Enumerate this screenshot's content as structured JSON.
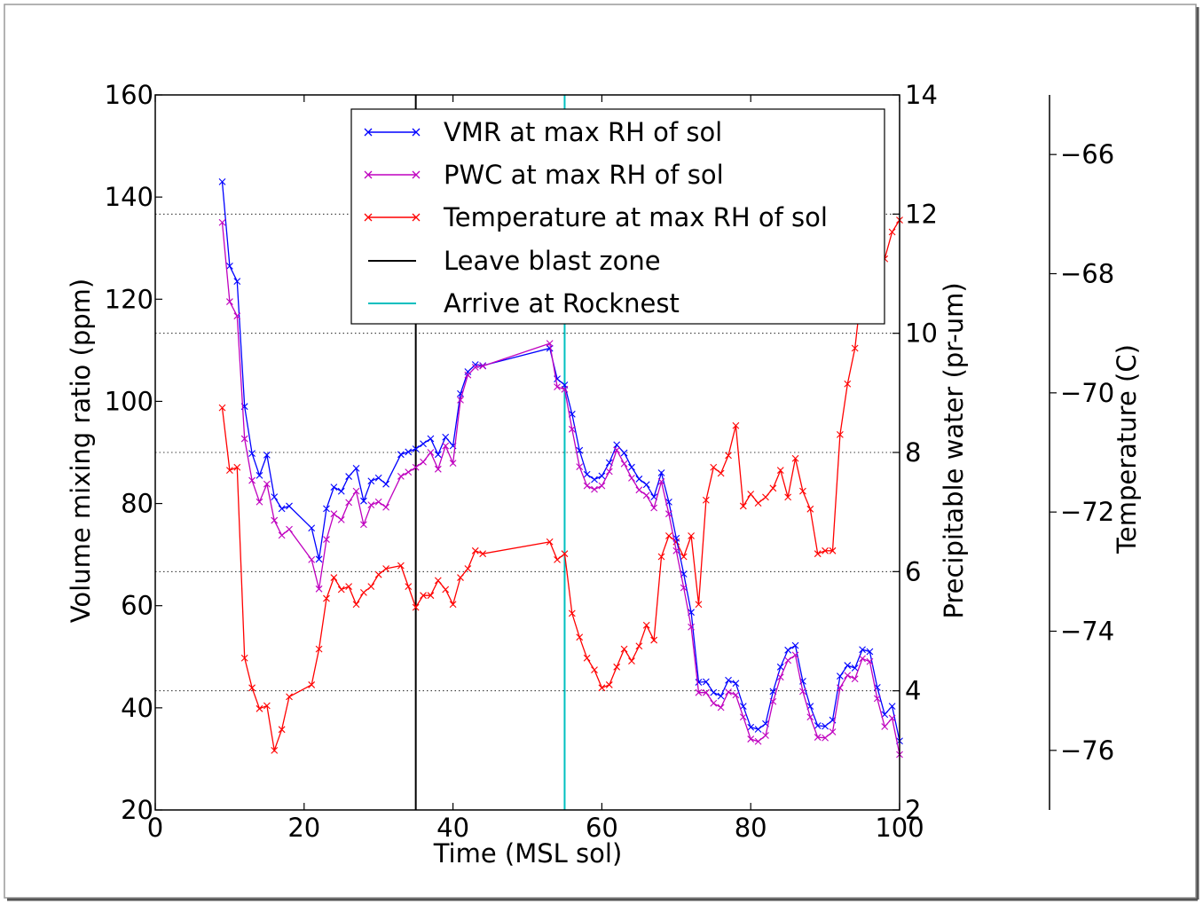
{
  "chart_data": {
    "type": "line",
    "title": "",
    "xlabel": "Time (MSL sol)",
    "ylabel_left": "Volume mixing ratio (ppm)",
    "ylabel_right": "Precipitable water (pr-um)",
    "ylabel_temperature": "Temperature (C)",
    "xlim": [
      0,
      100
    ],
    "ylim_left": [
      20,
      160
    ],
    "ylim_right": [
      2,
      14
    ],
    "ylim_temperature": [
      -77,
      -65
    ],
    "x_ticks": [
      0,
      20,
      40,
      60,
      80,
      100
    ],
    "y_left_ticks": [
      20,
      40,
      60,
      80,
      100,
      120,
      140,
      160
    ],
    "y_right_ticks": [
      2,
      4,
      6,
      8,
      10,
      12,
      14
    ],
    "y_temperature_ticks": [
      -76,
      -74,
      -72,
      -70,
      -68,
      -66
    ],
    "x_tick_labels": [
      "0",
      "20",
      "40",
      "60",
      "80",
      "100"
    ],
    "y_left_tick_labels": [
      "20",
      "40",
      "60",
      "80",
      "100",
      "120",
      "140",
      "160"
    ],
    "y_right_tick_labels": [
      "2",
      "4",
      "6",
      "8",
      "10",
      "12",
      "14"
    ],
    "y_temperature_tick_labels": [
      "−76",
      "−74",
      "−72",
      "−70",
      "−68",
      "−66"
    ],
    "grid": "horizontal dotted at right-axis ticks",
    "legend_position": "top-center",
    "vertical_lines": [
      {
        "name": "Leave blast zone",
        "x": 35,
        "color": "#000000"
      },
      {
        "name": "Arrive at Rocknest",
        "x": 55,
        "color": "#00bfbf"
      }
    ],
    "series": [
      {
        "name": "VMR at max RH of sol",
        "color": "#0000ff",
        "axis": "left",
        "x": [
          9,
          10,
          11,
          12,
          13,
          14,
          15,
          16,
          17,
          18,
          21,
          22,
          23,
          24,
          25,
          26,
          27,
          28,
          29,
          30,
          31,
          33,
          34,
          35,
          36,
          37,
          38,
          39,
          40,
          41,
          42,
          43,
          44,
          53,
          54,
          55,
          56,
          57,
          58,
          59,
          60,
          61,
          62,
          63,
          64,
          65,
          66,
          67,
          68,
          69,
          70,
          71,
          72,
          73,
          74,
          75,
          76,
          77,
          78,
          79,
          80,
          81,
          82,
          83,
          84,
          85,
          86,
          87,
          88,
          89,
          90,
          91,
          92,
          93,
          94,
          95,
          96,
          97,
          98,
          99,
          100
        ],
        "values": [
          143,
          126.5,
          123.5,
          99,
          89.8,
          85.5,
          89.5,
          81.3,
          79,
          79.5,
          75.2,
          69.1,
          79,
          83.2,
          82.4,
          85.3,
          86.9,
          80.5,
          84.4,
          85,
          83.8,
          89.6,
          90.1,
          90.7,
          91.7,
          92.7,
          89.6,
          93,
          91.3,
          101.5,
          105.8,
          107.2,
          107,
          110.4,
          104.4,
          103.2,
          97.5,
          90.4,
          85.7,
          84.7,
          85.4,
          88,
          91.5,
          89.9,
          87.1,
          84.8,
          83.7,
          81.3,
          86,
          80.3,
          73.2,
          66.2,
          58.7,
          45,
          45.1,
          43,
          42.3,
          45.4,
          44.8,
          40.3,
          36.2,
          35.8,
          36.9,
          43.2,
          48,
          51.3,
          52.2,
          45.2,
          40.3,
          36.5,
          36.4,
          37.6,
          46.2,
          48.3,
          47.8,
          51.4,
          51,
          44,
          38.7,
          40.3,
          33.5
        ]
      },
      {
        "name": "PWC at max RH of sol",
        "color": "#bf00bf",
        "axis": "right",
        "x": [
          9,
          10,
          11,
          12,
          13,
          14,
          15,
          16,
          17,
          18,
          21,
          22,
          23,
          24,
          25,
          26,
          27,
          28,
          29,
          30,
          31,
          33,
          34,
          35,
          36,
          37,
          38,
          39,
          40,
          41,
          42,
          43,
          44,
          53,
          54,
          55,
          56,
          57,
          58,
          59,
          60,
          61,
          62,
          63,
          64,
          65,
          66,
          67,
          68,
          69,
          70,
          71,
          72,
          73,
          74,
          75,
          76,
          77,
          78,
          79,
          80,
          81,
          82,
          83,
          84,
          85,
          86,
          87,
          88,
          89,
          90,
          91,
          92,
          93,
          94,
          95,
          96,
          97,
          98,
          99,
          100
        ],
        "values": [
          11.86,
          10.53,
          10.29,
          8.23,
          7.53,
          7.17,
          7.47,
          6.86,
          6.61,
          6.71,
          6.2,
          5.71,
          6.54,
          6.97,
          6.87,
          7.16,
          7.35,
          6.79,
          7.12,
          7.17,
          7.08,
          7.6,
          7.67,
          7.75,
          7.84,
          8,
          7.72,
          8.11,
          7.82,
          8.88,
          9.3,
          9.43,
          9.45,
          9.83,
          9.1,
          9.06,
          8.39,
          7.76,
          7.44,
          7.38,
          7.44,
          7.68,
          8.04,
          7.81,
          7.57,
          7.37,
          7.28,
          7.07,
          7.51,
          6.97,
          6.35,
          5.73,
          5.07,
          3.97,
          3.97,
          3.79,
          3.72,
          3.98,
          3.93,
          3.56,
          3.19,
          3.15,
          3.25,
          3.82,
          4.23,
          4.51,
          4.6,
          3.99,
          3.56,
          3.22,
          3.21,
          3.31,
          4.05,
          4.26,
          4.2,
          4.54,
          4.49,
          3.87,
          3.4,
          3.54,
          2.93
        ]
      },
      {
        "name": "Temperature at max RH of sol",
        "color": "#ff0000",
        "axis": "temperature",
        "x": [
          9,
          10,
          11,
          12,
          13,
          14,
          15,
          16,
          17,
          18,
          21,
          22,
          23,
          24,
          25,
          26,
          27,
          28,
          29,
          30,
          31,
          33,
          34,
          35,
          36,
          37,
          38,
          39,
          40,
          41,
          42,
          43,
          44,
          53,
          54,
          55,
          56,
          57,
          58,
          59,
          60,
          61,
          62,
          63,
          64,
          65,
          66,
          67,
          68,
          69,
          70,
          71,
          72,
          73,
          74,
          75,
          76,
          77,
          78,
          79,
          80,
          81,
          82,
          83,
          84,
          85,
          86,
          87,
          88,
          89,
          90,
          91,
          92,
          93,
          94,
          95,
          96,
          97,
          98,
          99,
          100
        ],
        "values": [
          -70.25,
          -71.3,
          -71.25,
          -74.45,
          -74.95,
          -75.3,
          -75.25,
          -76,
          -75.65,
          -75.1,
          -74.9,
          -74.3,
          -73.45,
          -73.1,
          -73.3,
          -73.25,
          -73.55,
          -73.35,
          -73.25,
          -73.05,
          -72.95,
          -72.9,
          -73.25,
          -73.6,
          -73.4,
          -73.4,
          -73.15,
          -73.3,
          -73.55,
          -73.1,
          -72.95,
          -72.65,
          -72.7,
          -72.5,
          -72.8,
          -72.7,
          -73.7,
          -74.1,
          -74.45,
          -74.65,
          -74.95,
          -74.9,
          -74.6,
          -74.3,
          -74.5,
          -74.25,
          -73.9,
          -74.15,
          -72.75,
          -72.4,
          -72.5,
          -72.75,
          -72.4,
          -73.55,
          -71.8,
          -71.25,
          -71.35,
          -71.05,
          -70.55,
          -71.9,
          -71.7,
          -71.85,
          -71.75,
          -71.6,
          -71.3,
          -71.75,
          -71.1,
          -71.65,
          -71.95,
          -72.7,
          -72.65,
          -72.65,
          -70.7,
          -69.85,
          -69.25,
          -68.15,
          -68.0,
          -68.2,
          -67.75,
          -67.3,
          -67.1
        ]
      }
    ]
  }
}
